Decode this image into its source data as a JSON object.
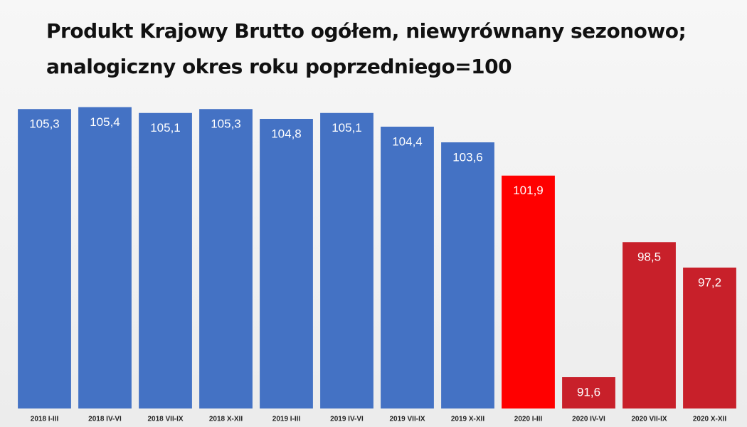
{
  "chart_data": {
    "type": "bar",
    "title": [
      "Produkt Krajowy Brutto ogółem, niewyrównany sezonowo;",
      "analogiczny okres roku poprzedniego=100"
    ],
    "categories": [
      "2018 I-III",
      "2018 IV-VI",
      "2018 VII-IX",
      "2018 X-XII",
      "2019 I-III",
      "2019 IV-VI",
      "2019 VII-IX",
      "2019 X-XII",
      "2020 I-III",
      "2020 IV-VI",
      "2020 VII-IX",
      "2020 X-XII"
    ],
    "values": [
      105.3,
      105.4,
      105.1,
      105.3,
      104.8,
      105.1,
      104.4,
      103.6,
      101.9,
      91.6,
      98.5,
      97.2
    ],
    "value_labels": [
      "105,3",
      "105,4",
      "105,1",
      "105,3",
      "104,8",
      "105,1",
      "104,4",
      "103,6",
      "101,9",
      "91,6",
      "98,5",
      "97,2"
    ],
    "colors": [
      "#4472c4",
      "#4472c4",
      "#4472c4",
      "#4472c4",
      "#4472c4",
      "#4472c4",
      "#4472c4",
      "#4472c4",
      "#ff0000",
      "#c8202a",
      "#c8202a",
      "#c8202a"
    ],
    "ylim": [
      90,
      106
    ]
  }
}
